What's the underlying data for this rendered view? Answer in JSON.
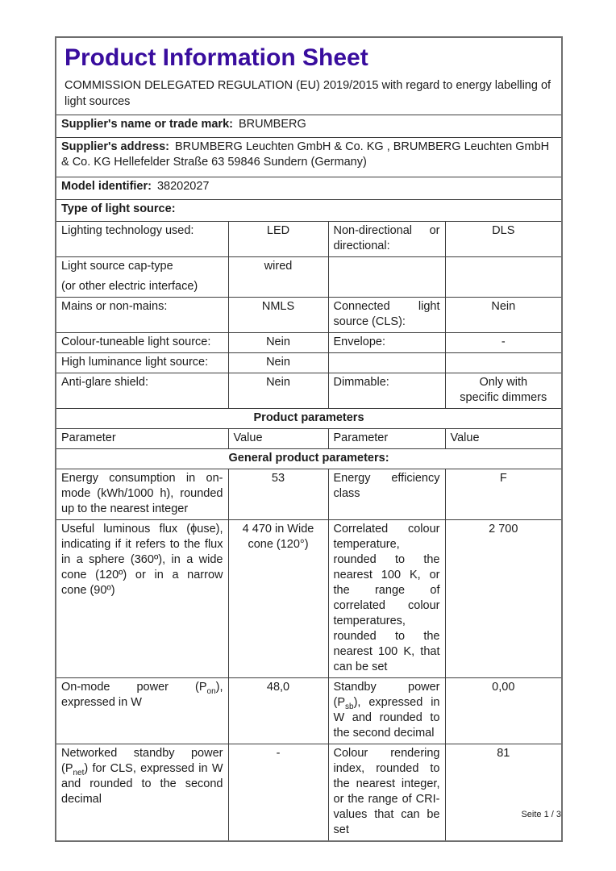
{
  "page": {
    "title": "Product Information Sheet",
    "title_color": "#390d9e",
    "subtitle": "COMMISSION DELEGATED REGULATION (EU) 2019/2015 with regard to energy labelling of light sources",
    "footer": "Seite 1 / 3"
  },
  "supplier": {
    "name_label": "Supplier's name or trade mark:",
    "name_value": "BRUMBERG",
    "address_label": "Supplier's address:",
    "address_value": "BRUMBERG Leuchten GmbH & Co. KG , BRUMBERG Leuchten GmbH & Co. KG Hellefelder Straße 63 59846 Sundern (Germany)",
    "model_label": "Model identifier:",
    "model_value": "38202027"
  },
  "type_section": {
    "heading": "Type of light source:",
    "rows": [
      {
        "p1": "Lighting technology used:",
        "v1": "LED",
        "p2": "Non-directional or directional:",
        "v2": "DLS"
      },
      {
        "p1a": "Light source cap-type",
        "p1b": "(or other electric interface)",
        "v1": "wired",
        "p2": "",
        "v2": ""
      },
      {
        "p1": "Mains or non-mains:",
        "v1": "NMLS",
        "p2": "Connected light source (CLS):",
        "v2": "Nein"
      },
      {
        "p1": "Colour-tuneable light source:",
        "v1": "Nein",
        "p2": "Envelope:",
        "v2": "-"
      },
      {
        "p1": "High luminance light source:",
        "v1": "Nein",
        "p2": "",
        "v2": ""
      },
      {
        "p1": "Anti-glare shield:",
        "v1": "Nein",
        "p2": "Dimmable:",
        "v2": "Only with\nspecific dimmers"
      }
    ]
  },
  "product_parameters": {
    "section_title": "Product parameters",
    "column_headers": [
      "Parameter",
      "Value",
      "Parameter",
      "Value"
    ],
    "general_title": "General product parameters:",
    "rows": [
      {
        "p1": "Energy consumption in on-mode (kWh/1000 h), rounded up to the nearest integer",
        "v1": "53",
        "p2": "Energy efficiency class",
        "v2": "F"
      },
      {
        "p1": "Useful luminous flux (ϕuse), indicating if it refers to the flux in a sphere (360º), in a wide cone (120º) or in a narrow cone (90º)",
        "v1": "4 470 in Wide\ncone (120°)",
        "p2": "Correlated colour temperature, rounded to the nearest 100 K, or the range of correlated colour temperatures, rounded to the nearest 100 K, that can be set",
        "v2": "2 700"
      },
      {
        "p1": "On-mode power (P{sub:on}), expressed in W",
        "v1": "48,0",
        "p2": "Standby power (P{sub:sb}), expressed in W and rounded to the second decimal",
        "v2": "0,00"
      },
      {
        "p1": "Networked standby power (P{sub:net}) for CLS, expressed in W and rounded to the second decimal",
        "v1": "-",
        "p2": "Colour rendering index, rounded to the nearest integer, or the range of CRI-values that can be set",
        "v2": "81"
      }
    ]
  }
}
